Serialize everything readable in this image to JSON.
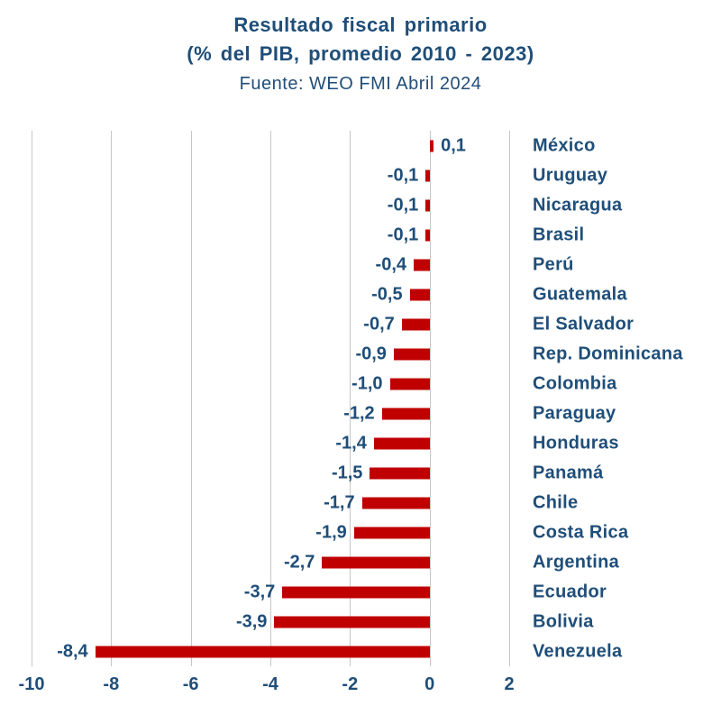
{
  "title": {
    "line1": "Resultado fiscal primario",
    "line2": "(% del PIB, promedio 2010 - 2023)",
    "line3": "Fuente: WEO FMI Abril 2024"
  },
  "chart_data": {
    "type": "bar",
    "orientation": "horizontal",
    "title": "Resultado fiscal primario",
    "subtitle": "(% del PIB, promedio 2010 - 2023)",
    "source": "Fuente: WEO FMI Abril 2024",
    "categories": [
      "México",
      "Uruguay",
      "Nicaragua",
      "Brasil",
      "Perú",
      "Guatemala",
      "El Salvador",
      "Rep. Dominicana",
      "Colombia",
      "Paraguay",
      "Honduras",
      "Panamá",
      "Chile",
      "Costa Rica",
      "Argentina",
      "Ecuador",
      "Bolivia",
      "Venezuela"
    ],
    "values": [
      0.1,
      -0.1,
      -0.1,
      -0.1,
      -0.4,
      -0.5,
      -0.7,
      -0.9,
      -1.0,
      -1.2,
      -1.4,
      -1.5,
      -1.7,
      -1.9,
      -2.7,
      -3.7,
      -3.9,
      -8.4
    ],
    "value_labels": [
      "0,1",
      "-0,1",
      "-0,1",
      "-0,1",
      "-0,4",
      "-0,5",
      "-0,7",
      "-0,9",
      "-1,0",
      "-1,2",
      "-1,4",
      "-1,5",
      "-1,7",
      "-1,9",
      "-2,7",
      "-3,7",
      "-3,9",
      "-8,4"
    ],
    "xlim": [
      -10,
      2
    ],
    "x_ticks": [
      -10,
      -8,
      -6,
      -4,
      -2,
      0,
      2
    ],
    "x_tick_labels": [
      "-10",
      "-8",
      "-6",
      "-4",
      "-2",
      "0",
      "2"
    ],
    "bar_color": "#C00000",
    "label_color": "#1F4E79",
    "grid": true,
    "legend": "none"
  }
}
